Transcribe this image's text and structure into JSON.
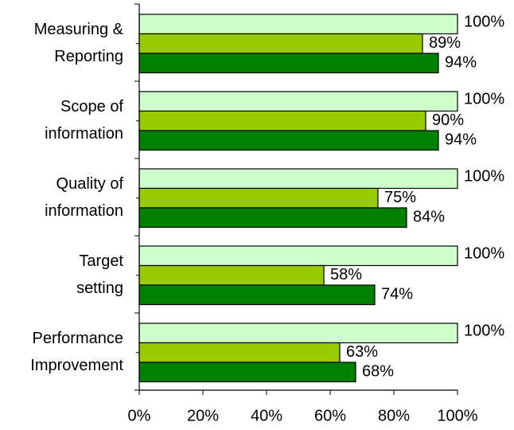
{
  "chart_data": {
    "type": "bar",
    "orientation": "horizontal",
    "categories": [
      "Measuring &\nReporting",
      "Scope of\ninformation",
      "Quality of\ninformation",
      "Target\nsetting",
      "Performance\nImprovement"
    ],
    "series": [
      {
        "color": "#ccffcc",
        "values": [
          100,
          100,
          100,
          100,
          100
        ],
        "value_labels": [
          "100%",
          "100%",
          "100%",
          "100%",
          "100%"
        ]
      },
      {
        "color": "#99cc00",
        "values": [
          89,
          90,
          75,
          58,
          63
        ],
        "value_labels": [
          "89%",
          "90%",
          "75%",
          "58%",
          "63%"
        ]
      },
      {
        "color": "#008000",
        "values": [
          94,
          94,
          84,
          74,
          68
        ],
        "value_labels": [
          "94%",
          "94%",
          "84%",
          "74%",
          "68%"
        ]
      }
    ],
    "xlim": [
      0,
      100
    ],
    "xticks": [
      {
        "value": 0,
        "label": "0%"
      },
      {
        "value": 20,
        "label": "20%"
      },
      {
        "value": 40,
        "label": "40%"
      },
      {
        "value": 60,
        "label": "60%"
      },
      {
        "value": 80,
        "label": "80%"
      },
      {
        "value": 100,
        "label": "100%"
      }
    ]
  }
}
